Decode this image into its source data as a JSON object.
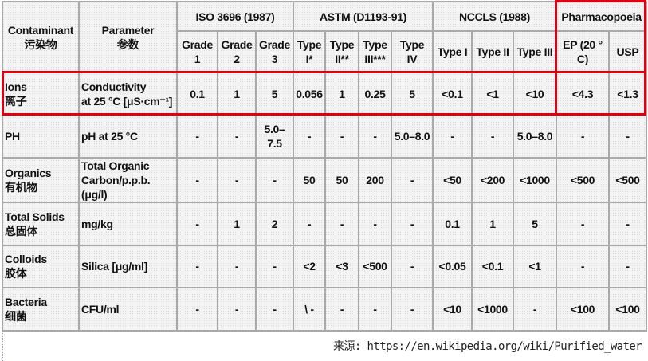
{
  "header": {
    "contaminant": {
      "en": "Contaminant",
      "zh": "污染物"
    },
    "parameter": {
      "en": "Parameter",
      "zh": "参数"
    },
    "groups": [
      {
        "label": "ISO 3696 (1987)",
        "columns": [
          [
            "Grade",
            "1"
          ],
          [
            "Grade",
            "2"
          ],
          [
            "Grade",
            "3"
          ]
        ]
      },
      {
        "label": "ASTM (D1193-91)",
        "columns": [
          [
            "Type",
            "I*"
          ],
          [
            "Type",
            "II**"
          ],
          [
            "Type",
            "III***"
          ],
          [
            "Type IV",
            ""
          ]
        ]
      },
      {
        "label": "NCCLS (1988)",
        "columns": [
          [
            "Type I",
            ""
          ],
          [
            "Type II",
            ""
          ],
          [
            "Type III",
            ""
          ]
        ]
      },
      {
        "label": "Pharmacopoeia",
        "columns": [
          [
            "EP (20 °",
            "C)"
          ],
          [
            "USP",
            ""
          ]
        ]
      }
    ]
  },
  "rows": [
    {
      "contaminant": [
        "Ions",
        "离子"
      ],
      "parameter": [
        "Conductivity",
        "at 25 °C [μS·cm⁻¹]"
      ],
      "values": [
        "0.1",
        "1",
        "5",
        "0.056",
        "1",
        "0.25",
        "5",
        "<0.1",
        "<1",
        "<10",
        "<4.3",
        "<1.3"
      ]
    },
    {
      "contaminant": [
        "PH",
        ""
      ],
      "parameter": [
        "pH at 25 °C",
        ""
      ],
      "values": [
        "-",
        "-",
        "5.0–7.5",
        "-",
        "-",
        "-",
        "5.0–8.0",
        "-",
        "-",
        "5.0–8.0",
        "-",
        "-"
      ]
    },
    {
      "contaminant": [
        "Organics",
        "有机物"
      ],
      "parameter": [
        "Total Organic",
        "Carbon/p.p.b.(μg/l)"
      ],
      "values": [
        "-",
        "-",
        "-",
        "50",
        "50",
        "200",
        "-",
        "<50",
        "<200",
        "<1000",
        "<500",
        "<500"
      ]
    },
    {
      "contaminant": [
        "Total Solids",
        "总固体"
      ],
      "parameter": [
        "mg/kg",
        ""
      ],
      "values": [
        "-",
        "1",
        "2",
        "-",
        "-",
        "-",
        "-",
        "0.1",
        "1",
        "5",
        "-",
        "-"
      ]
    },
    {
      "contaminant": [
        "Colloids",
        "胶体"
      ],
      "parameter": [
        "Silica [μg/ml]",
        ""
      ],
      "values": [
        "-",
        "-",
        "-",
        "<2",
        "<3",
        "<500",
        "-",
        "<0.05",
        "<0.1",
        "<1",
        "-",
        "-"
      ]
    },
    {
      "contaminant": [
        "Bacteria",
        "细菌"
      ],
      "parameter": [
        "CFU/ml",
        ""
      ],
      "values": [
        "-",
        "-",
        "-",
        "\\ -",
        "-",
        "-",
        "-",
        "<10",
        "<1000",
        "-",
        "<100",
        "<100"
      ]
    }
  ],
  "highlight_color": "#e00010",
  "footer": "来源: https://en.wikipedia.org/wiki/Purified_water"
}
